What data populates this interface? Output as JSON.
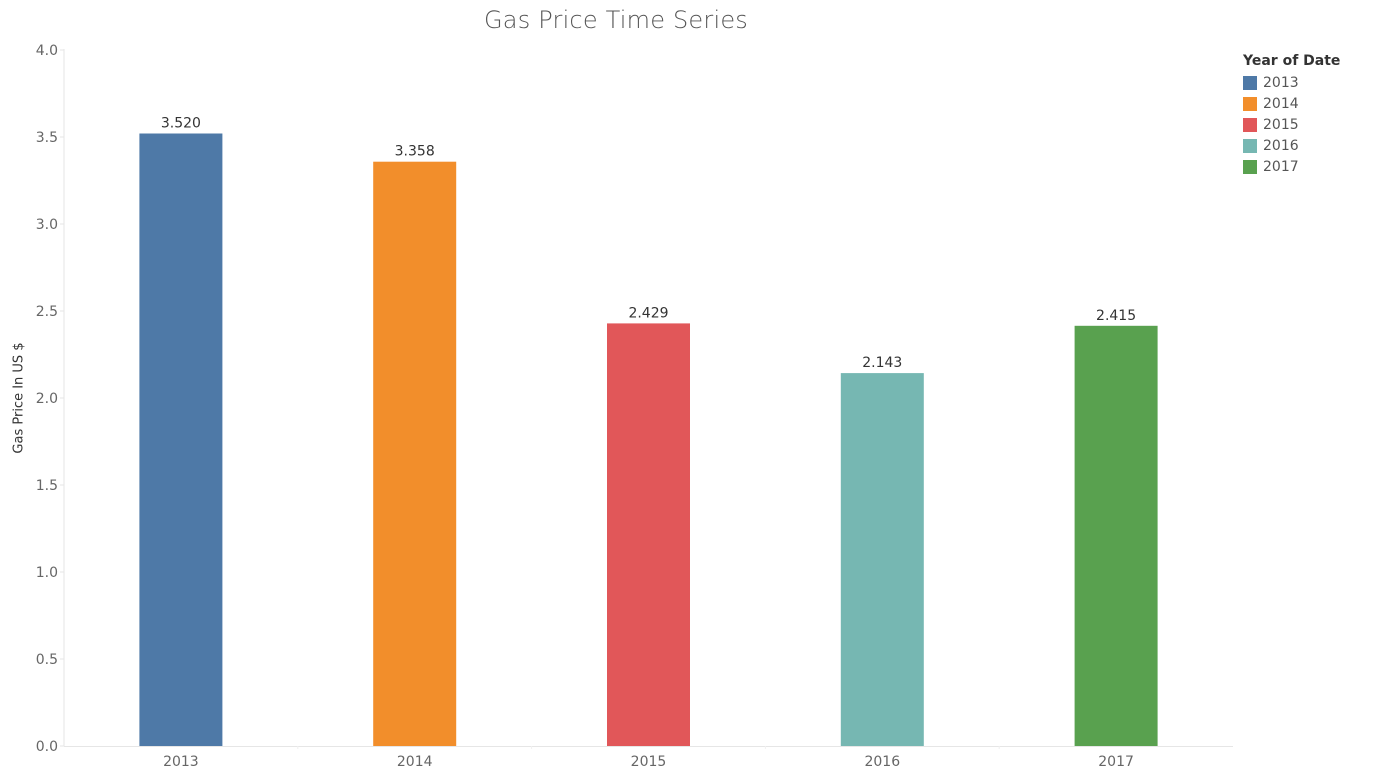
{
  "chart_data": {
    "type": "bar",
    "title": "Gas Price Time Series",
    "xlabel": "",
    "ylabel": "Gas Price In US $",
    "categories": [
      "2013",
      "2014",
      "2015",
      "2016",
      "2017"
    ],
    "values": [
      3.52,
      3.358,
      2.429,
      2.143,
      2.415
    ],
    "value_labels": [
      "3.520",
      "3.358",
      "2.429",
      "2.143",
      "2.415"
    ],
    "colors": [
      "#4e79a7",
      "#f28e2b",
      "#e15759",
      "#76b7b2",
      "#59a14f"
    ],
    "ylim": [
      0,
      4.0
    ],
    "yticks": [
      "0.0",
      "0.5",
      "1.0",
      "1.5",
      "2.0",
      "2.5",
      "3.0",
      "3.5",
      "4.0"
    ],
    "grid": false,
    "legend": {
      "title": "Year of Date",
      "position": "top-right",
      "items": [
        {
          "label": "2013",
          "color": "#4e79a7"
        },
        {
          "label": "2014",
          "color": "#f28e2b"
        },
        {
          "label": "2015",
          "color": "#e15759"
        },
        {
          "label": "2016",
          "color": "#76b7b2"
        },
        {
          "label": "2017",
          "color": "#59a14f"
        }
      ]
    }
  }
}
